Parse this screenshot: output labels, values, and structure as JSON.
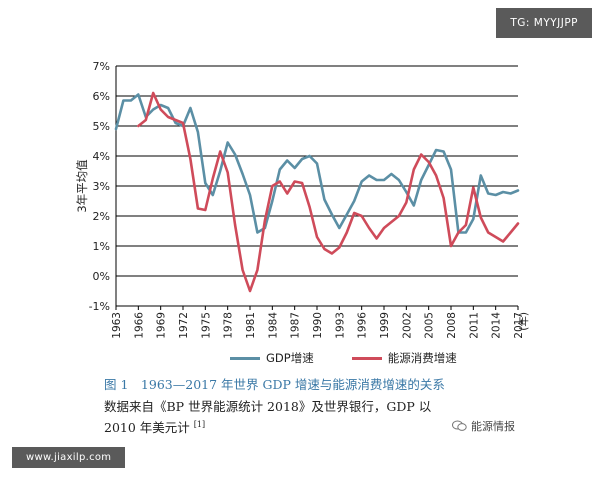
{
  "watermark_top": "TG: MYYJJPP",
  "site_watermark": "www.jiaxilp.com",
  "wechat_label": "能源情报",
  "caption": "图 1　1963—2017 年世界 GDP 增速与能源消费增速的关系",
  "source_line1": "数据来自《BP 世界能源统计 2018》及世界银行，GDP 以",
  "source_line2": "2010 年美元计",
  "source_ref": "[1]",
  "colors": {
    "gdp": "#5b8fa5",
    "energy": "#cf4b5a",
    "caption": "#3a78a6"
  },
  "chart_data": {
    "type": "line",
    "title": "",
    "xlabel": "(年)",
    "ylabel": "3年平均值",
    "ylim": [
      -1,
      7
    ],
    "y_ticks": [
      "-1%",
      "0%",
      "1%",
      "2%",
      "3%",
      "4%",
      "5%",
      "6%",
      "7%"
    ],
    "x_ticks": [
      "1963",
      "1966",
      "1969",
      "1972",
      "1975",
      "1978",
      "1981",
      "1984",
      "1987",
      "1990",
      "1993",
      "1996",
      "1999",
      "2002",
      "2005",
      "2008",
      "2011",
      "2014",
      "2017"
    ],
    "series": [
      {
        "name": "GDP增速",
        "x": [
          1963,
          1964,
          1965,
          1966,
          1967,
          1968,
          1969,
          1970,
          1971,
          1972,
          1973,
          1974,
          1975,
          1976,
          1977,
          1978,
          1979,
          1980,
          1981,
          1982,
          1983,
          1984,
          1985,
          1986,
          1987,
          1988,
          1989,
          1990,
          1991,
          1992,
          1993,
          1994,
          1995,
          1996,
          1997,
          1998,
          1999,
          2000,
          2001,
          2002,
          2003,
          2004,
          2005,
          2006,
          2007,
          2008,
          2009,
          2010,
          2011,
          2012,
          2013,
          2014,
          2015,
          2016,
          2017
        ],
        "values": [
          4.9,
          5.85,
          5.85,
          6.05,
          5.3,
          5.55,
          5.7,
          5.6,
          5.1,
          5.0,
          5.6,
          4.8,
          3.1,
          2.7,
          3.5,
          4.45,
          4.05,
          3.4,
          2.7,
          1.45,
          1.6,
          2.5,
          3.55,
          3.85,
          3.6,
          3.9,
          4.0,
          3.75,
          2.55,
          2.05,
          1.6,
          2.05,
          2.5,
          3.15,
          3.35,
          3.2,
          3.2,
          3.4,
          3.2,
          2.8,
          2.35,
          3.2,
          3.7,
          4.2,
          4.15,
          3.55,
          1.45,
          1.45,
          1.9,
          3.35,
          2.75,
          2.7,
          2.8,
          2.75,
          2.85
        ]
      },
      {
        "name": "能源消费增速",
        "x": [
          1966,
          1967,
          1968,
          1969,
          1970,
          1971,
          1972,
          1973,
          1974,
          1975,
          1976,
          1977,
          1978,
          1979,
          1980,
          1981,
          1982,
          1983,
          1984,
          1985,
          1986,
          1987,
          1988,
          1989,
          1990,
          1991,
          1992,
          1993,
          1994,
          1995,
          1996,
          1997,
          1998,
          1999,
          2000,
          2001,
          2002,
          2003,
          2004,
          2005,
          2006,
          2007,
          2008,
          2009,
          2010,
          2011,
          2012,
          2013,
          2014,
          2015,
          2016,
          2017
        ],
        "values": [
          5.0,
          5.2,
          6.1,
          5.55,
          5.3,
          5.2,
          5.1,
          3.9,
          2.25,
          2.2,
          3.25,
          4.15,
          3.45,
          1.7,
          0.2,
          -0.5,
          0.2,
          1.85,
          3.0,
          3.15,
          2.75,
          3.15,
          3.1,
          2.3,
          1.3,
          0.9,
          0.75,
          0.95,
          1.45,
          2.1,
          2.0,
          1.6,
          1.25,
          1.6,
          1.8,
          2.0,
          2.45,
          3.55,
          4.05,
          3.8,
          3.35,
          2.6,
          1.0,
          1.45,
          1.7,
          2.95,
          1.95,
          1.45,
          1.3,
          1.15,
          1.45,
          1.75
        ]
      }
    ],
    "legend_position": "bottom-center",
    "grid": "horizontal"
  }
}
